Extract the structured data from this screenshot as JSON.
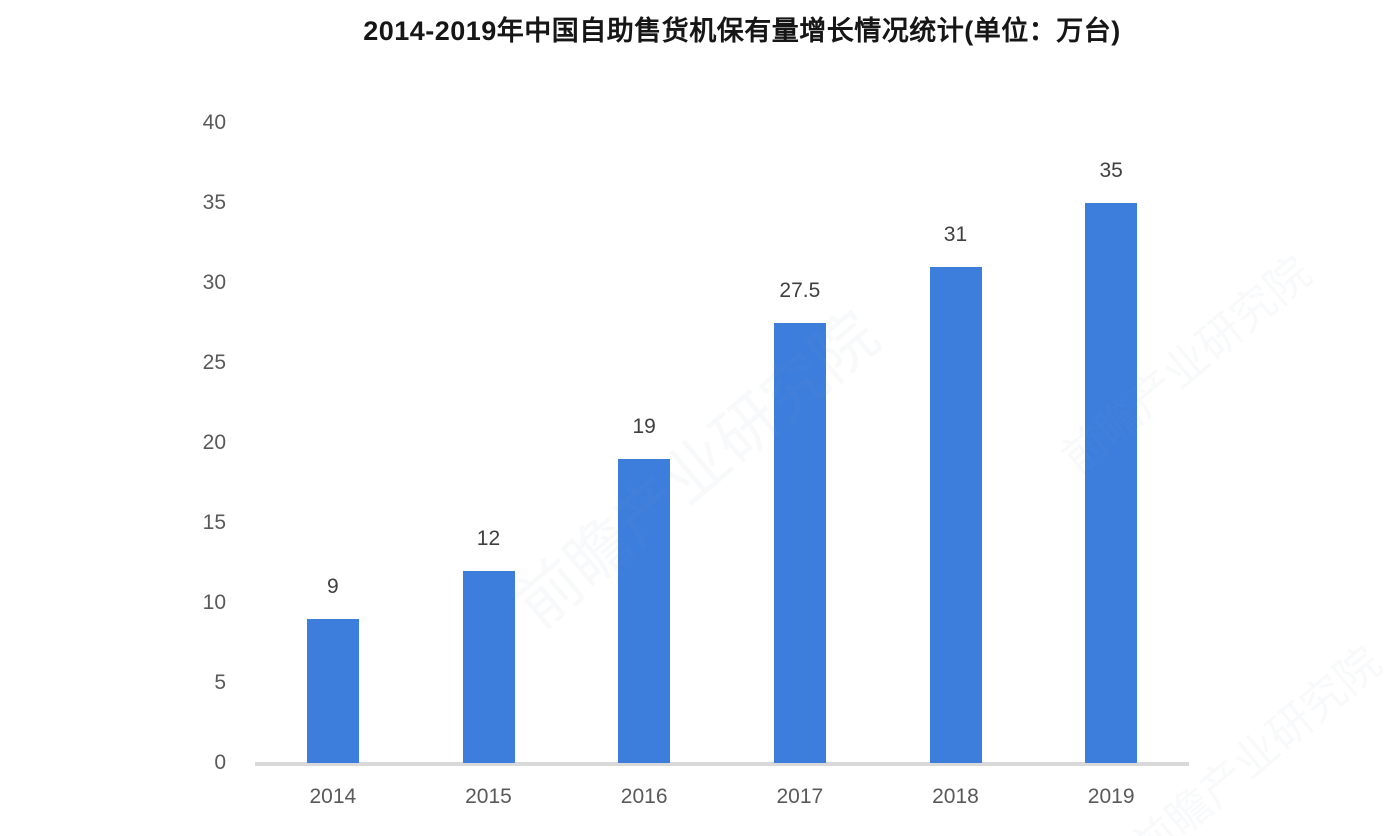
{
  "title": "2014-2019年中国自助售货机保有量增长情况统计(单位：万台)",
  "watermark": {
    "text": "前瞻产业研究院"
  },
  "chart_data": {
    "type": "bar",
    "title": "2014-2019年中国自助售货机保有量增长情况统计(单位：万台)",
    "categories": [
      "2014",
      "2015",
      "2016",
      "2017",
      "2018",
      "2019"
    ],
    "values": [
      9,
      12,
      19,
      27.5,
      31,
      35
    ],
    "value_labels": [
      "9",
      "12",
      "19",
      "27.5",
      "31",
      "35"
    ],
    "xlabel": "",
    "ylabel": "",
    "ylim": [
      0,
      40
    ],
    "yticks": [
      0,
      5,
      10,
      15,
      20,
      25,
      30,
      35,
      40
    ],
    "grid": false,
    "legend": "none",
    "bar_color": "#3d7edd",
    "axis_line_color": "#d9d9d9",
    "tick_label_color": "#595959",
    "data_label_color": "#3f3f3f",
    "title_color": "#161616"
  }
}
